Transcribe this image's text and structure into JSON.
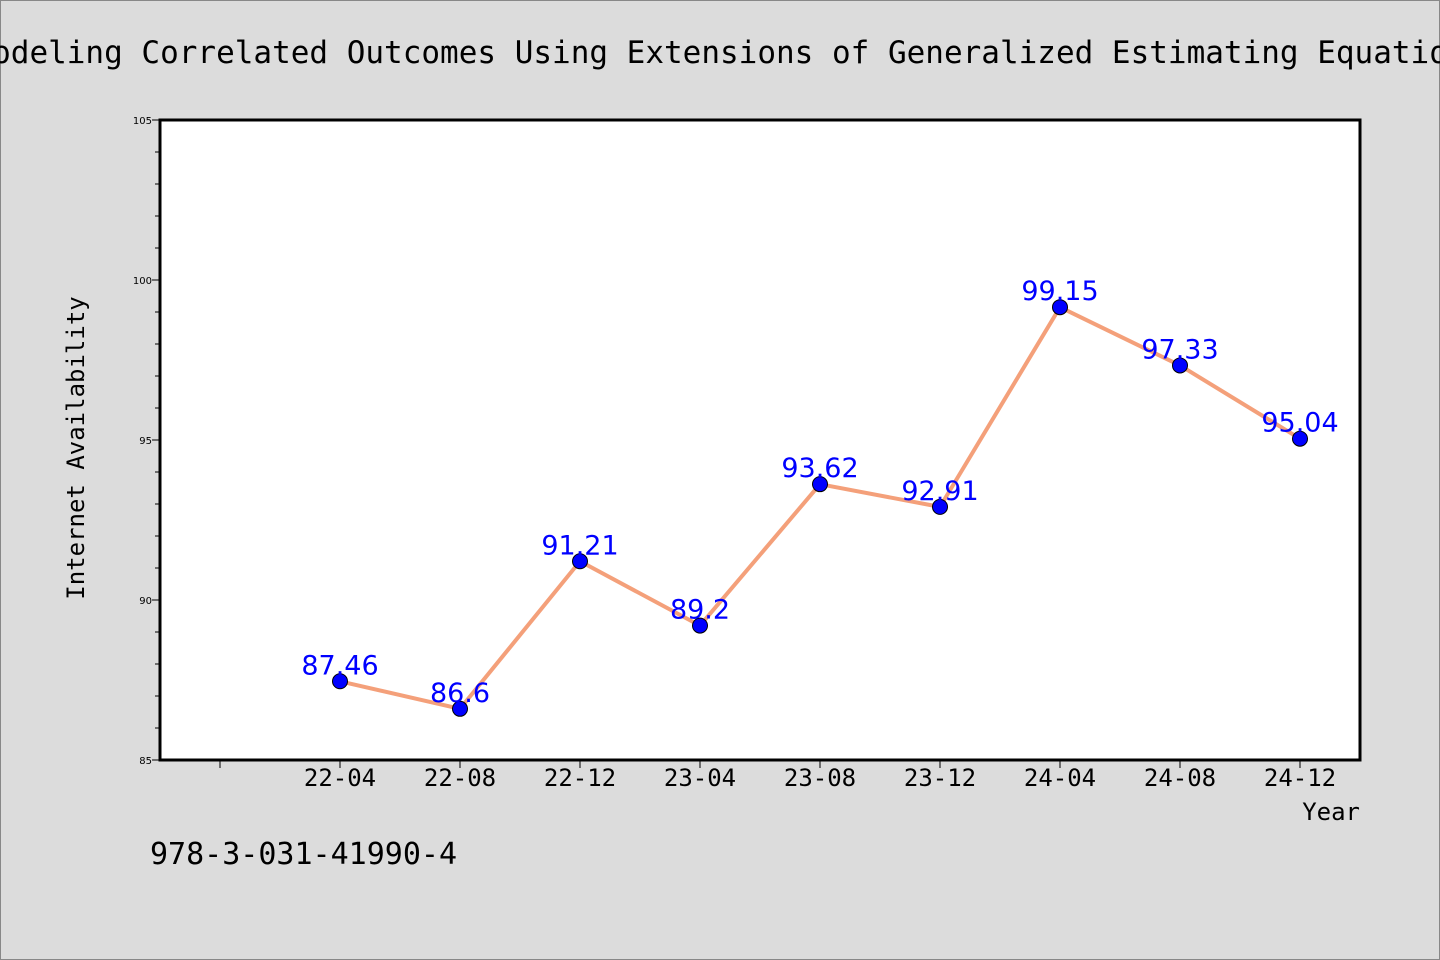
{
  "chart_data": {
    "type": "line",
    "title": "Modeling Correlated Outcomes Using Extensions of Generalized Estimating Equation",
    "xlabel": "Year",
    "ylabel": "Internet Availability",
    "categories": [
      "22-04",
      "22-08",
      "22-12",
      "23-04",
      "23-08",
      "23-12",
      "24-04",
      "24-08",
      "24-12"
    ],
    "values": [
      87.46,
      86.6,
      91.21,
      89.2,
      93.62,
      92.91,
      99.15,
      97.33,
      95.04
    ],
    "data_labels": [
      "87.46",
      "86.6",
      "91.21",
      "89.2",
      "93.62",
      "92.91",
      "99.15",
      "97.33",
      "95.04"
    ],
    "ylim": [
      85,
      105
    ],
    "yticks": [
      "85",
      "90",
      "95",
      "100",
      "105"
    ],
    "grid": false,
    "legend": "none",
    "line_color": "#f4a07a",
    "marker_color": "#0000ff",
    "label_color": "#0000ff"
  },
  "footer_text": "978-3-031-41990-4"
}
